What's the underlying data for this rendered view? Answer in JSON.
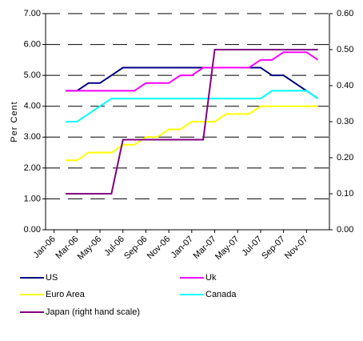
{
  "chart_data": {
    "type": "line",
    "y_label": "Per Cent",
    "categories": [
      "Jan-06",
      null,
      "Mar-06",
      null,
      "May-06",
      null,
      "Jul-06",
      null,
      "Sep-06",
      null,
      "Nov-06",
      null,
      "Jan-07",
      null,
      "Mar-07",
      null,
      "May-07",
      null,
      "Jul-07",
      null,
      "Sep-07",
      null,
      "Nov-07",
      null
    ],
    "series": [
      {
        "name": "US",
        "color": "#000080",
        "values": [
          null,
          4.5,
          4.5,
          4.75,
          4.75,
          5.0,
          5.25,
          5.25,
          5.25,
          5.25,
          5.25,
          5.25,
          5.25,
          5.25,
          5.25,
          5.25,
          5.25,
          5.25,
          5.25,
          5.0,
          5.0,
          4.75,
          4.5,
          4.25
        ]
      },
      {
        "name": "Uk",
        "color": "#ff00ff",
        "values": [
          null,
          4.5,
          4.5,
          4.5,
          4.5,
          4.5,
          4.5,
          4.5,
          4.75,
          4.75,
          4.75,
          5.0,
          5.0,
          5.25,
          5.25,
          5.25,
          5.25,
          5.25,
          5.5,
          5.5,
          5.75,
          5.75,
          5.75,
          5.5
        ]
      },
      {
        "name": "Euro Area",
        "color": "#ffff00",
        "values": [
          null,
          2.25,
          2.25,
          2.5,
          2.5,
          2.5,
          2.75,
          2.75,
          3.0,
          3.0,
          3.25,
          3.25,
          3.5,
          3.5,
          3.5,
          3.75,
          3.75,
          3.75,
          4.0,
          4.0,
          4.0,
          4.0,
          4.0,
          4.0
        ]
      },
      {
        "name": "Canada",
        "color": "#00ffff",
        "values": [
          null,
          3.5,
          3.5,
          3.75,
          4.0,
          4.25,
          4.25,
          4.25,
          4.25,
          4.25,
          4.25,
          4.25,
          4.25,
          4.25,
          4.25,
          4.25,
          4.25,
          4.25,
          4.25,
          4.5,
          4.5,
          4.5,
          4.5,
          4.25
        ]
      },
      {
        "name": "Japan (right hand scale)",
        "color": "#800080",
        "axis": "y2",
        "values": [
          null,
          0.1,
          0.1,
          0.1,
          0.1,
          0.1,
          0.25,
          0.25,
          0.25,
          0.25,
          0.25,
          0.25,
          0.25,
          0.25,
          0.5,
          0.5,
          0.5,
          0.5,
          0.5,
          0.5,
          0.5,
          0.5,
          0.5,
          0.5
        ]
      }
    ],
    "ylim": [
      0,
      7
    ],
    "yticks": [
      {
        "value": 0,
        "label": "0.00"
      },
      {
        "value": 1,
        "label": "1.00"
      },
      {
        "value": 2,
        "label": "2.00"
      },
      {
        "value": 3,
        "label": "3.00"
      },
      {
        "value": 4,
        "label": "4.00"
      },
      {
        "value": 5,
        "label": "5.00"
      },
      {
        "value": 6,
        "label": "6.00"
      },
      {
        "value": 7,
        "label": "7.00"
      }
    ],
    "y2lim": [
      0,
      0.6
    ],
    "y2ticks": [
      {
        "value": 0,
        "label": "0.00"
      },
      {
        "value": 0.1,
        "label": "0.10"
      },
      {
        "value": 0.2,
        "label": "0.20"
      },
      {
        "value": 0.3,
        "label": "0.30"
      },
      {
        "value": 0.4,
        "label": "0.40"
      },
      {
        "value": 0.5,
        "label": "0.50"
      },
      {
        "value": 0.6,
        "label": "0.60"
      }
    ],
    "grid": true
  }
}
